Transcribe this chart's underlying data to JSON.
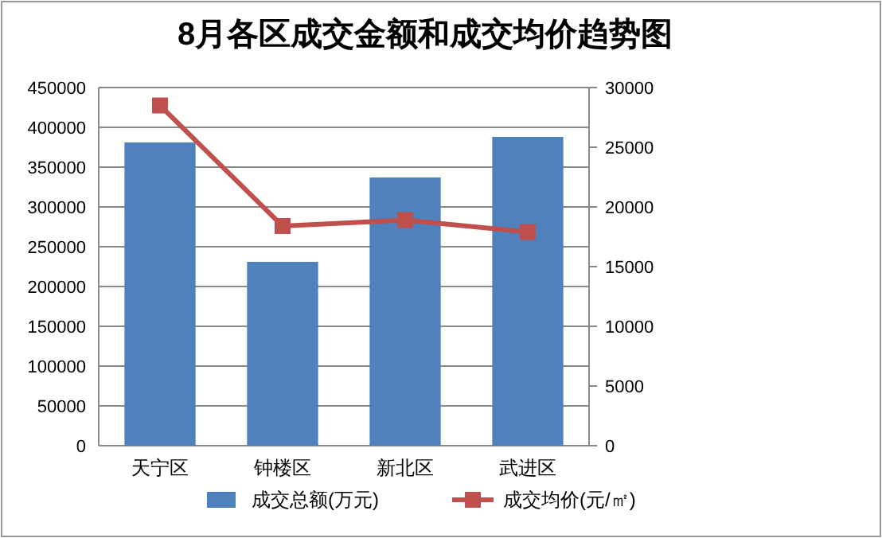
{
  "chart_data": {
    "type": "bar",
    "title": "8月各区成交金额和成交均价趋势图",
    "categories": [
      "天宁区",
      "钟楼区",
      "新北区",
      "武进区"
    ],
    "series": [
      {
        "name": "成交总额(万元)",
        "color": "#4f81bd",
        "values": [
          381000,
          231000,
          337000,
          388000
        ]
      },
      {
        "name": "成交均价(元/㎡)",
        "type": "line",
        "axis": "y2",
        "color": "#c0504d",
        "values": [
          28500,
          18400,
          18900,
          17900
        ]
      }
    ],
    "ylim": [
      0,
      450000
    ],
    "yticks": [
      0,
      50000,
      100000,
      150000,
      200000,
      250000,
      300000,
      350000,
      400000,
      450000
    ],
    "y2lim": [
      0,
      30000
    ],
    "y2ticks": [
      0,
      5000,
      10000,
      15000,
      20000,
      25000,
      30000
    ],
    "grid": "y",
    "legend": "bottom",
    "marker": "square"
  }
}
